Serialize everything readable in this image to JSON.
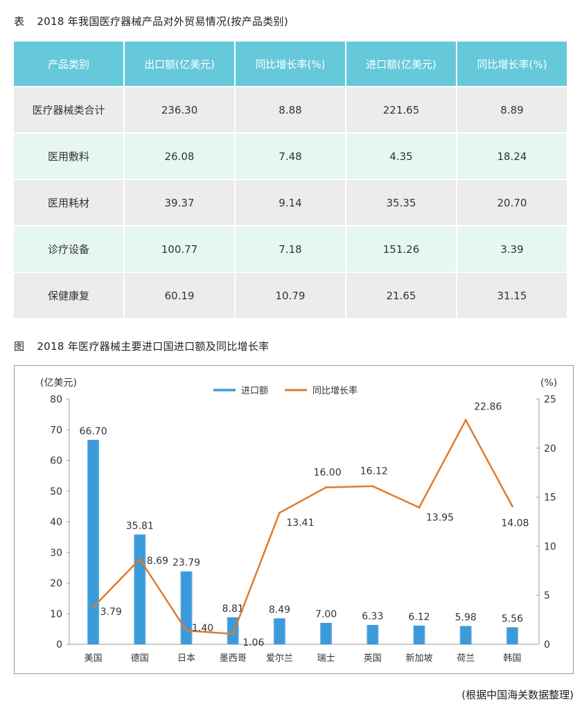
{
  "table": {
    "caption_lead": "表",
    "caption": "2018 年我国医疗器械产品对外贸易情况(按产品类别)",
    "headers": [
      "产品类别",
      "出口额(亿美元)",
      "同比增长率(%)",
      "进口额(亿美元)",
      "同比增长率(%)"
    ],
    "rows": [
      [
        "医疗器械类合计",
        "236.30",
        "8.88",
        "221.65",
        "8.89"
      ],
      [
        "医用敷料",
        "26.08",
        "7.48",
        "4.35",
        "18.24"
      ],
      [
        "医用耗材",
        "39.37",
        "9.14",
        "35.35",
        "20.70"
      ],
      [
        "诊疗设备",
        "100.77",
        "7.18",
        "151.26",
        "3.39"
      ],
      [
        "保健康复",
        "60.19",
        "10.79",
        "21.65",
        "31.15"
      ]
    ],
    "colors": {
      "header_bg": "#66c9da",
      "row_gray": "#ececec",
      "row_mint": "#e6f6f3"
    }
  },
  "chart_caption_lead": "图",
  "chart_caption": "2018 年医疗器械主要进口国进口额及同比增长率",
  "source_note": "(根据中国海关数据整理)",
  "chart_data": {
    "type": "bar+line",
    "title": "2018 年医疗器械主要进口国进口额及同比增长率",
    "categories": [
      "美国",
      "德国",
      "日本",
      "墨西哥",
      "爱尔兰",
      "瑞士",
      "英国",
      "新加坡",
      "荷兰",
      "韩国"
    ],
    "series": [
      {
        "name": "进口额",
        "type": "bar",
        "axis": "left",
        "color": "#3b9ad9",
        "values": [
          66.7,
          35.81,
          23.79,
          8.81,
          8.49,
          7.0,
          6.33,
          6.12,
          5.98,
          5.56
        ],
        "labels": [
          "66.70",
          "35.81",
          "23.79",
          "8.81",
          "8.49",
          "7.00",
          "6.33",
          "6.12",
          "5.98",
          "5.56"
        ]
      },
      {
        "name": "同比增长率",
        "type": "line",
        "axis": "right",
        "color": "#e07a2a",
        "values": [
          3.79,
          8.69,
          1.4,
          1.06,
          13.41,
          16.0,
          16.12,
          13.95,
          22.86,
          14.08
        ],
        "labels": [
          "3.79",
          "8.69",
          "1.40",
          "1.06",
          "13.41",
          "16.00",
          "16.12",
          "13.95",
          "22.86",
          "14.08"
        ]
      }
    ],
    "y_left": {
      "label": "(亿美元)",
      "ylim": [
        0,
        80
      ],
      "ticks": [
        "0",
        "10",
        "20",
        "30",
        "40",
        "50",
        "60",
        "70",
        "80"
      ]
    },
    "y_right": {
      "label": "(%)",
      "ylim": [
        0,
        25
      ],
      "ticks": [
        "0",
        "5",
        "10",
        "15",
        "20",
        "25"
      ]
    },
    "legend": {
      "placement": "top-center",
      "entries": [
        "进口额",
        "同比增长率"
      ]
    },
    "grid": false
  }
}
